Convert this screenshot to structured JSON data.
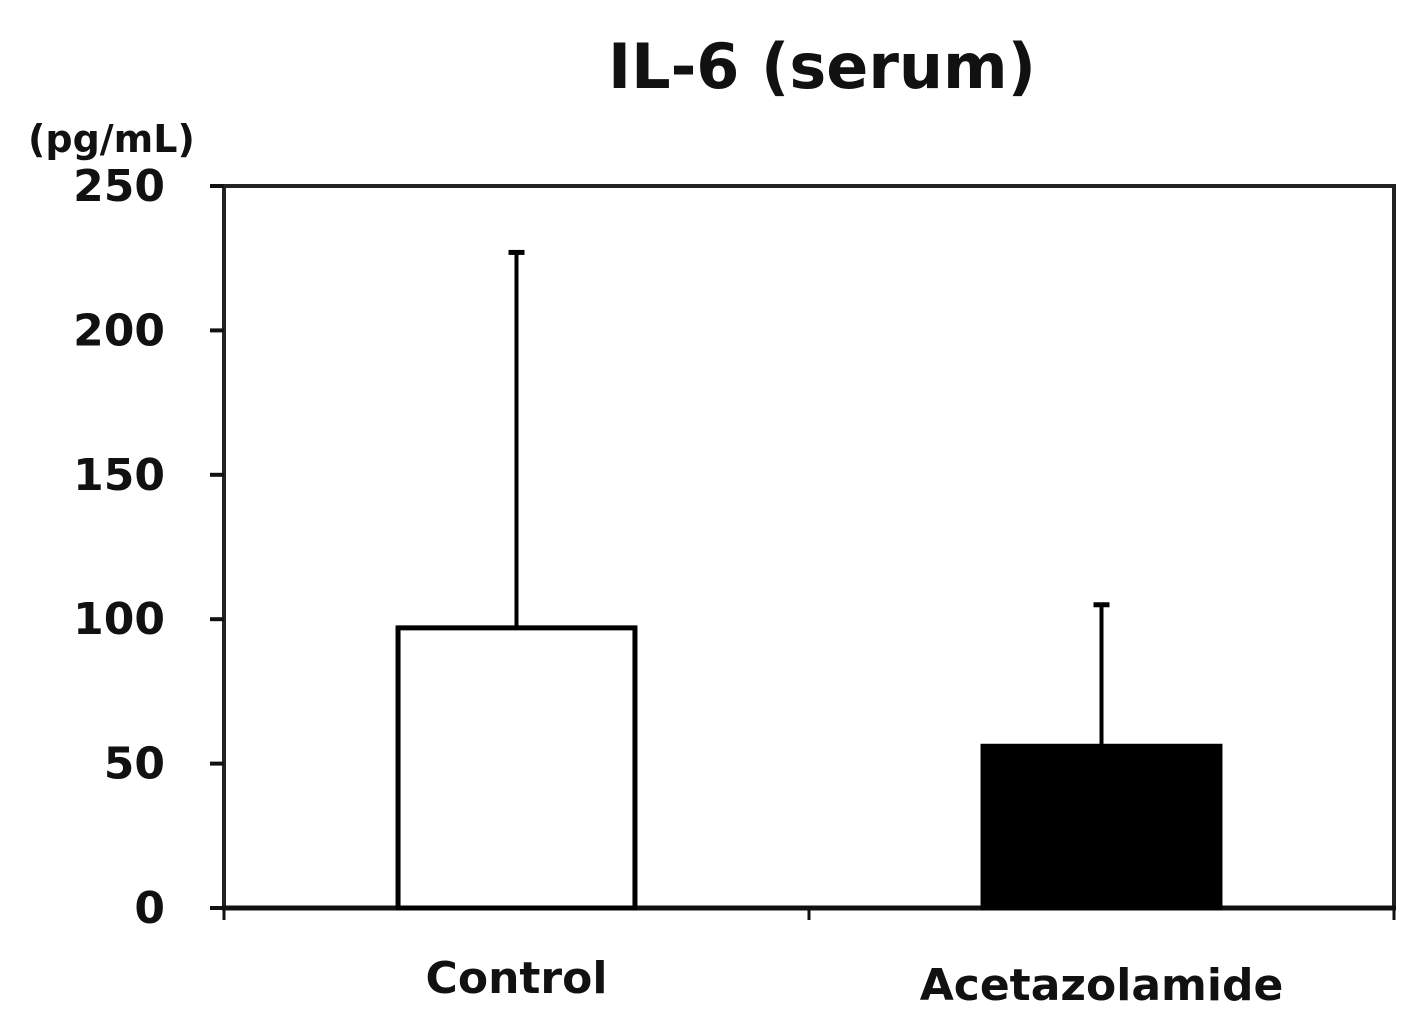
{
  "chart_data": {
    "type": "bar",
    "title": "IL-6 (serum)",
    "unit_label": "(pg/mL)",
    "xlabel": "",
    "ylabel": "",
    "ylim": [
      0,
      250
    ],
    "yticks": [
      0,
      50,
      100,
      150,
      200,
      250
    ],
    "ytick_labels": [
      "0",
      "50",
      "100",
      "150",
      "200",
      "250"
    ],
    "grid": false,
    "categories": [
      "Control",
      "Acetazolamide"
    ],
    "values": [
      97,
      56
    ],
    "error_upper": [
      227,
      105
    ],
    "colors": {
      "Control": "#ffffff",
      "Acetazolamide": "#000000",
      "stroke": "#000000",
      "axis": "#111111",
      "frame": "#222222"
    }
  }
}
